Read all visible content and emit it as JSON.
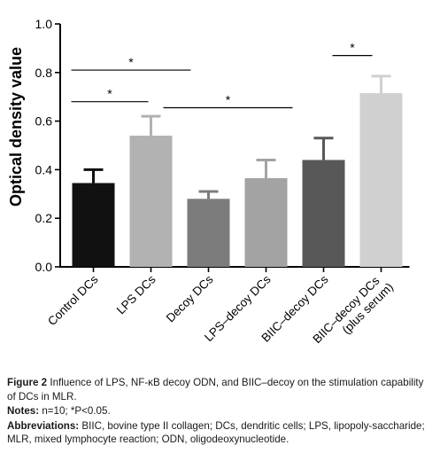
{
  "chart_data": {
    "type": "bar",
    "ylabel": "Optical density value",
    "ylim": [
      0,
      1.0
    ],
    "yticks": [
      "0.0",
      "0.2",
      "0.4",
      "0.6",
      "0.8",
      "1.0"
    ],
    "categories": [
      "Control DCs",
      "LPS DCs",
      "Decoy DCs",
      "LPS–decoy DCs",
      "BIIC–decoy DCs",
      "BIIC–decoy DCs\n(plus serum)"
    ],
    "values": [
      0.345,
      0.54,
      0.28,
      0.365,
      0.44,
      0.715
    ],
    "errors": [
      0.055,
      0.08,
      0.03,
      0.075,
      0.09,
      0.07
    ],
    "bar_colors": [
      "#111111",
      "#b2b2b2",
      "#7c7c7c",
      "#a3a3a3",
      "#585858",
      "#d0d0d0"
    ],
    "significance": [
      {
        "from": 0,
        "to": 2,
        "y": 0.81,
        "label": "*"
      },
      {
        "from": 0,
        "to": 1,
        "y": 0.68,
        "label": "*"
      },
      {
        "from": 1,
        "to": 3,
        "y": 0.655,
        "label": "*"
      },
      {
        "from": 5,
        "to": 5,
        "from_label": "BIIC–decoy DCs",
        "y": 0.87,
        "label": "*"
      }
    ]
  },
  "caption": {
    "fig_label": "Figure 2",
    "fig_text": "Influence of LPS, NF-κB decoy ODN, and BIIC–decoy on the stimulation capability of DCs in MLR.",
    "notes_label": "Notes:",
    "notes_text": "n=10; *P<0.05.",
    "abbr_label": "Abbreviations:",
    "abbr_text": "BIIC, bovine type II collagen; DCs, dendritic cells; LPS, lipopoly-saccharide; MLR, mixed lymphocyte reaction; ODN, oligodeoxynucleotide."
  }
}
